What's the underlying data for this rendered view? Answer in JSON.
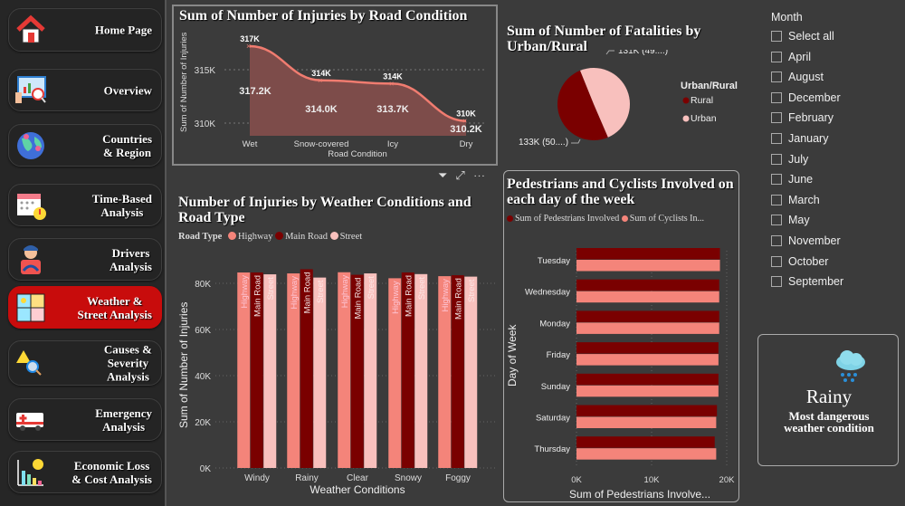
{
  "sidebar": {
    "items": [
      {
        "label": "Home Page",
        "icon": "house-icon",
        "active": false
      },
      {
        "label": "Overview",
        "icon": "dashboard-magnifier-icon",
        "active": false
      },
      {
        "label": "Countries\n& Region",
        "icon": "globe-icon",
        "active": false
      },
      {
        "label": "Time-Based\nAnalysis",
        "icon": "calendar-alert-icon",
        "active": false
      },
      {
        "label": "Drivers\nAnalysis",
        "icon": "driver-icon",
        "active": false
      },
      {
        "label": "Weather &\nStreet Analysis",
        "icon": "weather-icon",
        "active": true
      },
      {
        "label": "Causes &\nSeverity\nAnalysis",
        "icon": "warning-search-icon",
        "active": false
      },
      {
        "label": "Emergency\nAnalysis",
        "icon": "ambulance-icon",
        "active": false
      },
      {
        "label": "Economic Loss\n& Cost Analysis",
        "icon": "cost-chart-icon",
        "active": false
      }
    ]
  },
  "colors": {
    "highway": "#f4847a",
    "main_road": "#7a0000",
    "street": "#f8c0bd",
    "area_line": "#f07c70",
    "area_fill": "#7d4c4a",
    "active_nav": "#c80c0c"
  },
  "chart_data": [
    {
      "type": "area",
      "title": "Sum of Number of Injuries by Road Condition",
      "xlabel": "Road Condition",
      "ylabel": "Sum of Number of Injuries",
      "categories": [
        "Wet",
        "Snow-covered",
        "Icy",
        "Dry"
      ],
      "values": [
        317.2,
        314.0,
        313.7,
        310.2
      ],
      "unit": "K",
      "data_labels": [
        "317K",
        "314K",
        "314K",
        "310K"
      ],
      "value_labels": [
        "317.2K",
        "314.0K",
        "313.7K",
        "310.2K"
      ],
      "yticks": [
        "315K",
        "310K"
      ],
      "grid": true
    },
    {
      "type": "pie",
      "title": "Sum of Number of Fatalities by Urban/Rural",
      "legend_title": "Urban/Rural",
      "legend_position": "right",
      "slices": [
        {
          "name": "Rural",
          "value": 133,
          "label": "133K (50....)",
          "color": "#7a0000"
        },
        {
          "name": "Urban",
          "value": 131,
          "label": "131K (49....)",
          "color": "#f8c0bd"
        }
      ]
    },
    {
      "type": "bar",
      "title": "Number of Injuries by Weather Conditions and Road Type",
      "legend_title": "Road Type",
      "legend_position": "top-left",
      "xlabel": "Weather Conditions",
      "ylabel": "Sum of Number of Injuries",
      "categories": [
        "Windy",
        "Rainy",
        "Clear",
        "Snowy",
        "Foggy"
      ],
      "yticks": [
        "0K",
        "20K",
        "40K",
        "60K",
        "80K"
      ],
      "ylim": [
        0,
        88
      ],
      "unit": "K",
      "series": [
        {
          "name": "Highway",
          "values": [
            84.7,
            84.3,
            84.8,
            82.2,
            83.1
          ]
        },
        {
          "name": "Main Road",
          "values": [
            84.7,
            86.1,
            83.7,
            84.7,
            83.5
          ]
        },
        {
          "name": "Street",
          "values": [
            83.9,
            82.5,
            84.3,
            84.0,
            82.9
          ]
        }
      ]
    },
    {
      "type": "bar",
      "orientation": "horizontal",
      "title": "Pedestrians and Cyclists Involved on each day of the week",
      "xlabel": "Sum of Pedestrians Involve...",
      "ylabel": "Day of Week",
      "categories": [
        "Tuesday",
        "Wednesday",
        "Monday",
        "Friday",
        "Sunday",
        "Saturday",
        "Thursday"
      ],
      "xticks": [
        "0K",
        "10K",
        "20K"
      ],
      "xlim": [
        0,
        20
      ],
      "unit": "K",
      "legend_position": "top-left",
      "series": [
        {
          "name": "Sum of Pedestrians Involved",
          "values": [
            19.1,
            19.0,
            19.0,
            18.9,
            18.9,
            18.7,
            18.4
          ]
        },
        {
          "name": "Sum of Cyclists In...",
          "values": [
            19.1,
            19.0,
            19.0,
            18.9,
            18.9,
            18.6,
            18.6
          ]
        }
      ]
    }
  ],
  "slicer": {
    "title": "Month",
    "items": [
      "Select all",
      "April",
      "August",
      "December",
      "February",
      "January",
      "July",
      "June",
      "March",
      "May",
      "November",
      "October",
      "September"
    ]
  },
  "card": {
    "value": "Rainy",
    "caption": "Most dangerous weather condition",
    "icon": "rain-cloud-icon"
  }
}
